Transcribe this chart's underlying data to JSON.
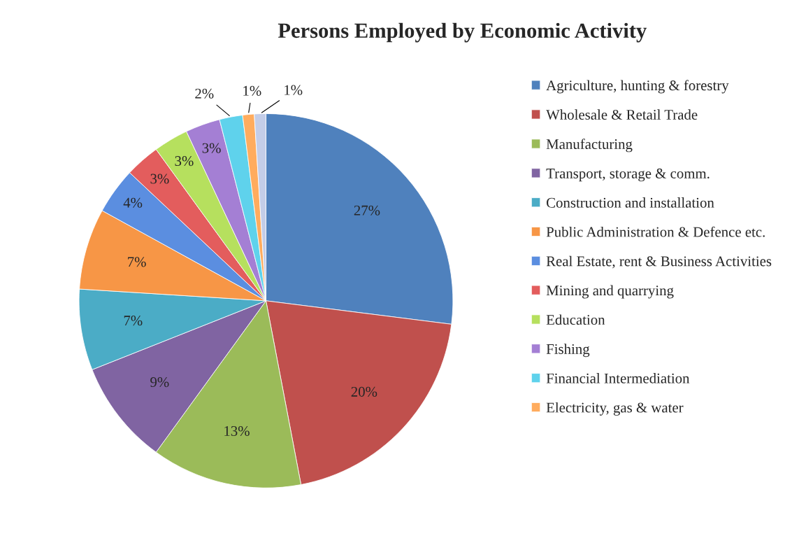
{
  "chart_data": {
    "type": "pie",
    "title": "Persons Employed by Economic Activity",
    "categories": [
      "Agriculture, hunting & forestry",
      "Wholesale & Retail Trade",
      "Manufacturing",
      "Transport, storage & comm.",
      "Construction and installation",
      "Public Administration & Defence etc.",
      "Real Estate, rent & Business Activities",
      "Mining and quarrying",
      "Education",
      "Fishing",
      "Financial Intermediation",
      "Electricity, gas & water",
      null
    ],
    "values": [
      27,
      20,
      13,
      9,
      7,
      7,
      4,
      3,
      3,
      3,
      2,
      1,
      1
    ],
    "colors": [
      "#4f81bd",
      "#c0504d",
      "#9bbb59",
      "#8064a2",
      "#4bacc6",
      "#f79646",
      "#5b8ee0",
      "#e35d5d",
      "#b6e05e",
      "#a47fd4",
      "#5fd2ec",
      "#ffac5e",
      "#c3cde8"
    ],
    "value_labels": [
      "27%",
      "20%",
      "13%",
      "9%",
      "7%",
      "7%",
      "4%",
      "3%",
      "3%",
      "3%",
      "2%",
      "1%",
      "1%"
    ],
    "legend": "right"
  }
}
